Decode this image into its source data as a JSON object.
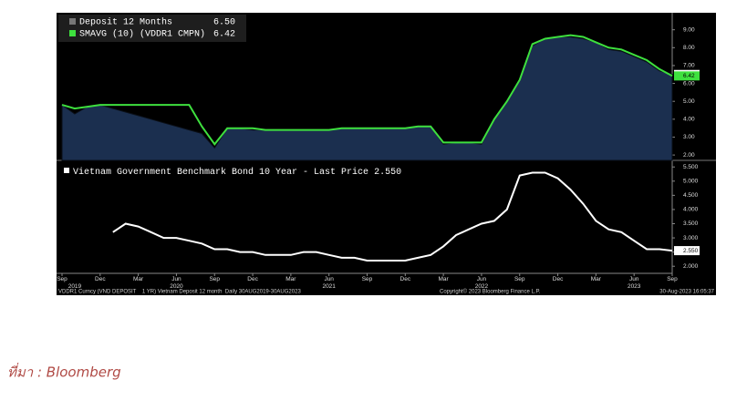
{
  "chart_data": [
    {
      "type": "area",
      "x": [
        "2019-09",
        "2019-10",
        "2019-11",
        "2019-12",
        "2020-01",
        "2020-02",
        "2020-03",
        "2020-04",
        "2020-05",
        "2020-06",
        "2020-07",
        "2020-08",
        "2020-09",
        "2020-10",
        "2020-11",
        "2020-12",
        "2021-01",
        "2021-02",
        "2021-03",
        "2021-04",
        "2021-05",
        "2021-06",
        "2021-07",
        "2021-08",
        "2021-09",
        "2021-10",
        "2021-11",
        "2021-12",
        "2022-01",
        "2022-02",
        "2022-03",
        "2022-04",
        "2022-05",
        "2022-06",
        "2022-07",
        "2022-08",
        "2022-09",
        "2022-10",
        "2022-11",
        "2022-12",
        "2023-01",
        "2023-02",
        "2023-03",
        "2023-04",
        "2023-05",
        "2023-06",
        "2023-07",
        "2023-08",
        "2023-09"
      ],
      "series": [
        {
          "name": "Deposit 12 Months",
          "color": "#1b2f4f",
          "legend_value": {
            "value": 6.5,
            "label": "6.50"
          },
          "values": [
            4.8,
            4.3,
            4.7,
            4.8,
            4.6,
            4.4,
            4.2,
            4.0,
            3.8,
            3.6,
            3.4,
            3.2,
            2.4,
            3.5,
            3.5,
            3.4,
            3.4,
            3.4,
            3.4,
            3.4,
            3.4,
            3.4,
            3.5,
            3.5,
            3.5,
            3.5,
            3.5,
            3.5,
            3.6,
            3.6,
            2.6,
            2.7,
            2.7,
            2.6,
            4.0,
            5.0,
            6.2,
            8.1,
            8.5,
            8.6,
            8.6,
            8.5,
            8.3,
            7.9,
            7.8,
            7.5,
            7.2,
            6.7,
            6.5
          ]
        },
        {
          "name": "SMAVG (10) (VDDR1 CMPN)",
          "color": "#3ee03e",
          "legend_value": {
            "value": 6.42,
            "label": "6.42"
          },
          "values": [
            4.8,
            4.6,
            4.7,
            4.8,
            4.8,
            4.8,
            4.8,
            4.8,
            4.8,
            4.8,
            4.8,
            3.6,
            2.6,
            3.5,
            3.5,
            3.5,
            3.4,
            3.4,
            3.4,
            3.4,
            3.4,
            3.4,
            3.5,
            3.5,
            3.5,
            3.5,
            3.5,
            3.5,
            3.6,
            3.6,
            2.7,
            2.7,
            2.7,
            2.7,
            4.0,
            5.0,
            6.2,
            8.2,
            8.5,
            8.6,
            8.7,
            8.6,
            8.3,
            8.0,
            7.9,
            7.6,
            7.3,
            6.8,
            6.42
          ]
        }
      ],
      "ylim": [
        1.7,
        9.9
      ],
      "yticks": [
        {
          "value": 2,
          "label": "2.00"
        },
        {
          "value": 3,
          "label": "3.00"
        },
        {
          "value": 4,
          "label": "4.00"
        },
        {
          "value": 5,
          "label": "5.00"
        },
        {
          "value": 6,
          "label": "6.00"
        },
        {
          "value": 7,
          "label": "7.00"
        },
        {
          "value": 8,
          "label": "8.00"
        },
        {
          "value": 9,
          "label": "9.00"
        }
      ]
    },
    {
      "type": "line",
      "x": [
        "2019-09",
        "2019-10",
        "2019-11",
        "2019-12",
        "2020-01",
        "2020-02",
        "2020-03",
        "2020-04",
        "2020-05",
        "2020-06",
        "2020-07",
        "2020-08",
        "2020-09",
        "2020-10",
        "2020-11",
        "2020-12",
        "2021-01",
        "2021-02",
        "2021-03",
        "2021-04",
        "2021-05",
        "2021-06",
        "2021-07",
        "2021-08",
        "2021-09",
        "2021-10",
        "2021-11",
        "2021-12",
        "2022-01",
        "2022-02",
        "2022-03",
        "2022-04",
        "2022-05",
        "2022-06",
        "2022-07",
        "2022-08",
        "2022-09",
        "2022-10",
        "2022-11",
        "2022-12",
        "2023-01",
        "2023-02",
        "2023-03",
        "2023-04",
        "2023-05",
        "2023-06",
        "2023-07",
        "2023-08",
        "2023-09"
      ],
      "series": [
        {
          "name": "Vietnam Government Benchmark Bond 10 Year - Last Price",
          "color": "#ffffff",
          "legend_value": {
            "value": 2.55,
            "label": "2.550"
          },
          "values": [
            null,
            null,
            null,
            null,
            3.2,
            3.5,
            3.4,
            3.2,
            3.0,
            3.0,
            2.9,
            2.8,
            2.6,
            2.6,
            2.5,
            2.5,
            2.4,
            2.4,
            2.4,
            2.5,
            2.5,
            2.4,
            2.3,
            2.3,
            2.2,
            2.2,
            2.2,
            2.2,
            2.3,
            2.4,
            2.7,
            3.1,
            3.3,
            3.5,
            3.6,
            4.0,
            5.2,
            5.3,
            5.3,
            5.1,
            4.7,
            4.2,
            3.6,
            3.3,
            3.2,
            2.9,
            2.6,
            2.6,
            2.55
          ]
        }
      ],
      "ylim": [
        1.75,
        5.7
      ],
      "yticks": [
        {
          "value": 2,
          "label": "2.000"
        },
        {
          "value": 2.5,
          "label": "2.500"
        },
        {
          "value": 3,
          "label": "3.000"
        },
        {
          "value": 3.5,
          "label": "3.500"
        },
        {
          "value": 4,
          "label": "4.000"
        },
        {
          "value": 4.5,
          "label": "4.500"
        },
        {
          "value": 5,
          "label": "5.000"
        },
        {
          "value": 5.5,
          "label": "5.500"
        }
      ],
      "xticks": [
        {
          "value": "2019-09",
          "label": "Sep"
        },
        {
          "value": "2019-12",
          "label": "Dec"
        },
        {
          "value": "2020-03",
          "label": "Mar"
        },
        {
          "value": "2020-06",
          "label": "Jun"
        },
        {
          "value": "2020-09",
          "label": "Sep"
        },
        {
          "value": "2020-12",
          "label": "Dec"
        },
        {
          "value": "2021-03",
          "label": "Mar"
        },
        {
          "value": "2021-06",
          "label": "Jun"
        },
        {
          "value": "2021-09",
          "label": "Sep"
        },
        {
          "value": "2021-12",
          "label": "Dec"
        },
        {
          "value": "2022-03",
          "label": "Mar"
        },
        {
          "value": "2022-06",
          "label": "Jun"
        },
        {
          "value": "2022-09",
          "label": "Sep"
        },
        {
          "value": "2022-12",
          "label": "Dec"
        },
        {
          "value": "2023-03",
          "label": "Mar"
        },
        {
          "value": "2023-06",
          "label": "Jun"
        },
        {
          "value": "2023-09",
          "label": "Sep"
        }
      ],
      "year_labels": [
        {
          "value": "2019-10",
          "label": "2019"
        },
        {
          "value": "2020-06",
          "label": "2020"
        },
        {
          "value": "2021-06",
          "label": "2021"
        },
        {
          "value": "2022-06",
          "label": "2022"
        },
        {
          "value": "2023-06",
          "label": "2023"
        }
      ]
    }
  ],
  "footer": {
    "left": "VDDR1 Curncy (VND DEPOSIT    1 YR) Vietnam Deposit 12 month  Daily 30AUG2019-30AUG2023",
    "center": "Copyright© 2023 Bloomberg Finance L.P.",
    "right": "30-Aug-2023 16:05:37"
  },
  "source": "ที่มา : Bloomberg"
}
